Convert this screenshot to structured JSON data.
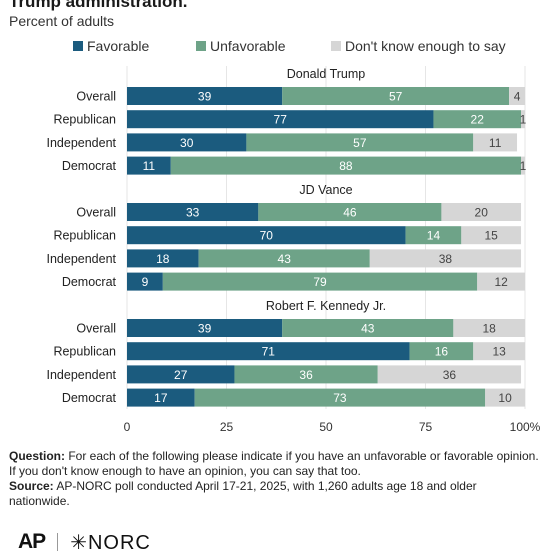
{
  "title": "Trump administration.",
  "subtitle": "Percent of adults",
  "legend": [
    {
      "label": "Favorable",
      "color": "#1b5b7e"
    },
    {
      "label": "Unfavorable",
      "color": "#6ea388"
    },
    {
      "label": "Don't know enough to say",
      "color": "#d6d6d6"
    }
  ],
  "colors": {
    "favorable": "#1b5b7e",
    "unfavorable": "#6ea388",
    "dont_know": "#d6d6d6"
  },
  "chart_data": {
    "type": "bar",
    "orientation": "horizontal",
    "stacked": true,
    "xlim": [
      0,
      100
    ],
    "xticks": [
      "0",
      "25",
      "50",
      "75",
      "100%"
    ],
    "grid": true,
    "legend_position": "top",
    "series_names": [
      "Favorable",
      "Unfavorable",
      "Don't know enough to say"
    ],
    "groups": [
      {
        "title": "Donald Trump",
        "rows": [
          {
            "label": "Overall",
            "values": [
              39,
              57,
              4
            ]
          },
          {
            "label": "Republican",
            "values": [
              77,
              22,
              1
            ]
          },
          {
            "label": "Independent",
            "values": [
              30,
              57,
              11
            ]
          },
          {
            "label": "Democrat",
            "values": [
              11,
              88,
              1
            ]
          }
        ]
      },
      {
        "title": "JD Vance",
        "rows": [
          {
            "label": "Overall",
            "values": [
              33,
              46,
              20
            ]
          },
          {
            "label": "Republican",
            "values": [
              70,
              14,
              15
            ]
          },
          {
            "label": "Independent",
            "values": [
              18,
              43,
              38
            ]
          },
          {
            "label": "Democrat",
            "values": [
              9,
              79,
              12
            ]
          }
        ]
      },
      {
        "title": "Robert F. Kennedy Jr.",
        "rows": [
          {
            "label": "Overall",
            "values": [
              39,
              43,
              18
            ]
          },
          {
            "label": "Republican",
            "values": [
              71,
              16,
              13
            ]
          },
          {
            "label": "Independent",
            "values": [
              27,
              36,
              36
            ]
          },
          {
            "label": "Democrat",
            "values": [
              17,
              73,
              10
            ]
          }
        ]
      }
    ]
  },
  "notes": {
    "question_label": "Question:",
    "question_text": "For each of the following please indicate if you have an unfavorable or favorable opinion. If you don't know enough to have an opinion, you can say that too.",
    "source_label": "Source:",
    "source_text": "AP-NORC poll conducted April 17-21, 2025, with 1,260 adults age 18 and older nationwide."
  },
  "logos": {
    "ap": "AP",
    "norc": "✳NORC"
  }
}
